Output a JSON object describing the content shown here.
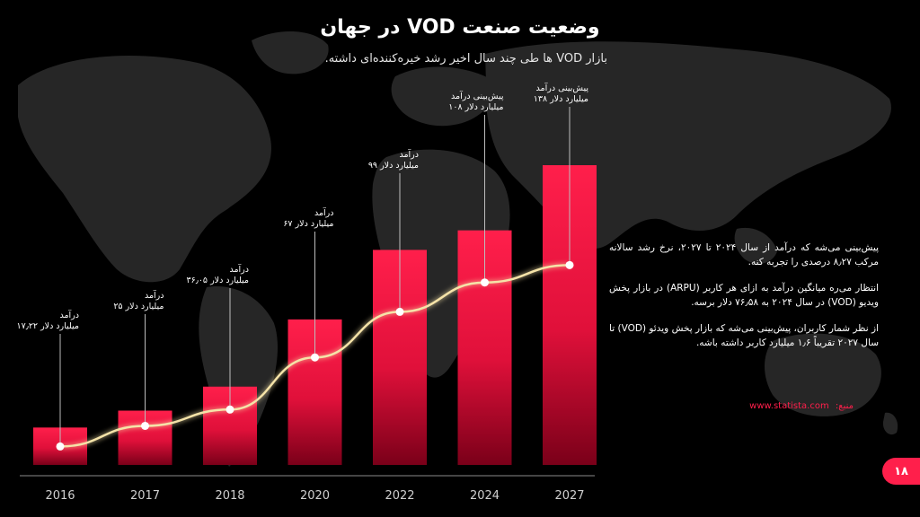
{
  "title": "وضعیت صنعت VOD در جهان",
  "subtitle": "بازار VOD ها طی چند سال اخیر رشد خیره‌کننده‌ای داشته.",
  "info_paragraphs": [
    "پیش‌بینی می‌شه که درآمد از سال ۲۰۲۴ تا ۲۰۲۷، نرخ رشد سالانه مرکب ۸٫۲۷ درصدی را تجربه کنه.",
    "انتظار می‌ره میانگین درآمد به ازای هر کاربر (ARPU) در بازار پخش ویدیو (VOD) در سال ۲۰۲۴ به ۷۶٫۵۸ دلار برسه.",
    "از نظر شمار کاربران، پیش‌بینی می‌شه که بازار پخش ویدئو (VOD) تا سال ۲۰۲۷ تقریباً ۱٫۶ میلیارد کاربر داشته باشه."
  ],
  "source": {
    "label": "منبع:",
    "link": "www.statista.com"
  },
  "page_number": "۱۸",
  "colors": {
    "accent": "#ff1f4b",
    "bar_top": "#ff1f4b",
    "bar_bottom": "#7a0019",
    "line": "#f5e3a8"
  },
  "chart_data": {
    "type": "bar",
    "categories": [
      "2016",
      "2017",
      "2018",
      "2020",
      "2022",
      "2024",
      "2027"
    ],
    "values": [
      17.22,
      25,
      36.05,
      67,
      99,
      108,
      138
    ],
    "unit": "billion USD",
    "ylim": [
      0,
      150
    ],
    "annotations": [
      [
        "درآمد",
        "۱۷٫۲۲ میلیارد دلار"
      ],
      [
        "درآمد",
        "۲۵ میلیارد دلار"
      ],
      [
        "درآمد",
        "۳۶٫۰۵ میلیارد دلار"
      ],
      [
        "درآمد",
        "۶۷ میلیارد دلار"
      ],
      [
        "درآمد",
        "۹۹ میلیارد دلار"
      ],
      [
        "پیش‌بینی درآمد",
        "۱۰۸ میلیارد دلار"
      ],
      [
        "پیش‌بینی درآمد",
        "۱۳۸ میلیارد دلار"
      ]
    ]
  }
}
